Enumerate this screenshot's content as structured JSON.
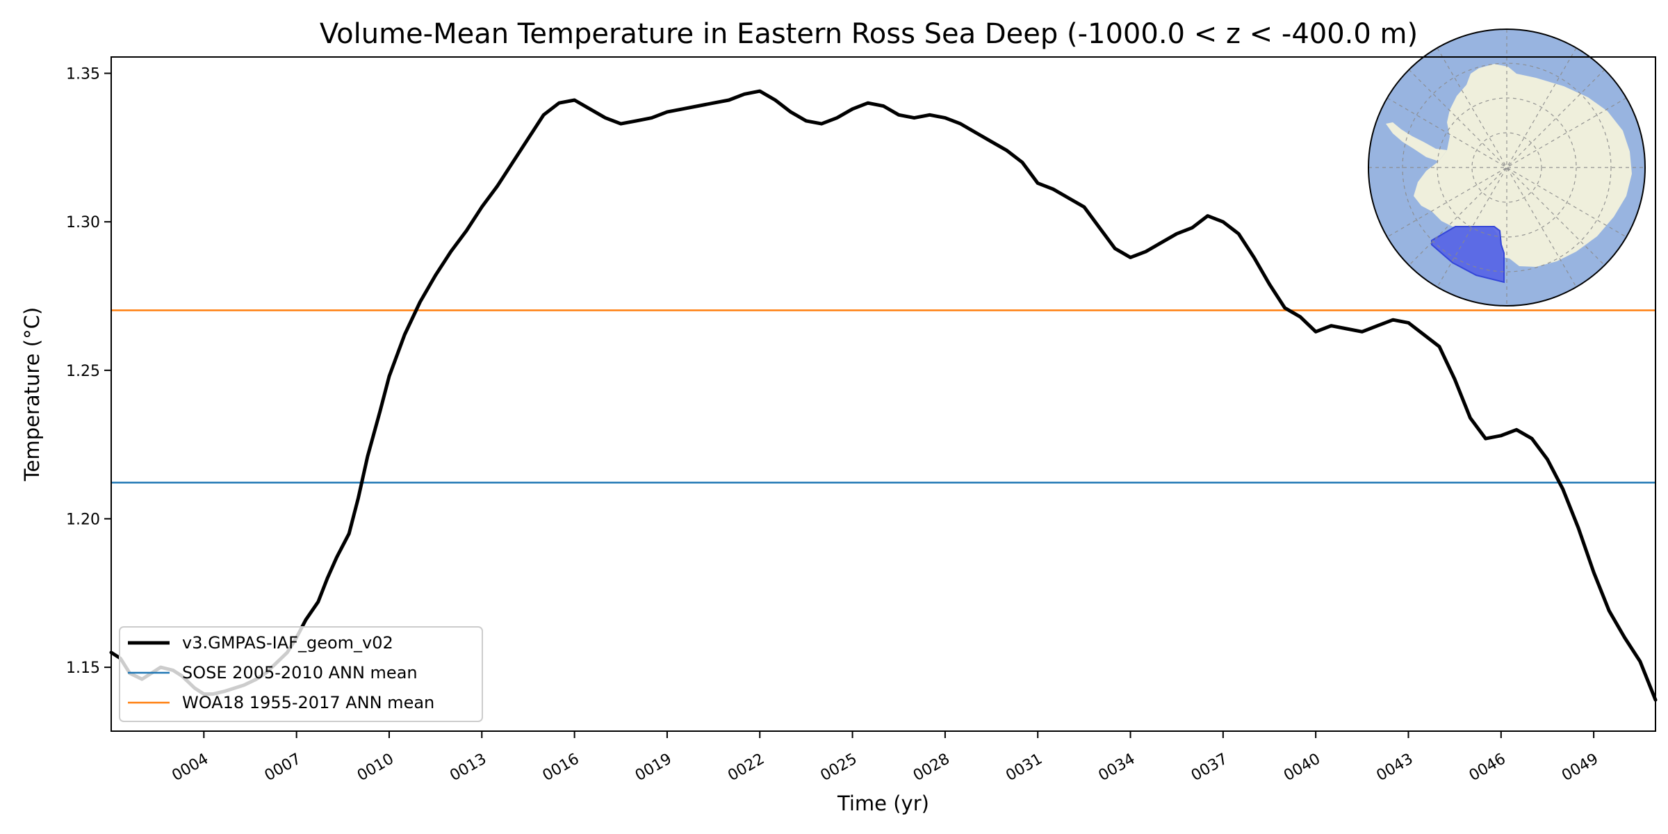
{
  "chart_data": {
    "type": "line",
    "title": "Volume-Mean Temperature in Eastern Ross Sea Deep (-1000.0 < z < -400.0 m)",
    "xlabel": "Time (yr)",
    "ylabel": "Temperature (°C)",
    "xlim": [
      1.0,
      51.0
    ],
    "ylim": [
      1.1285,
      1.3555
    ],
    "x_ticks": [
      4,
      7,
      10,
      13,
      16,
      19,
      22,
      25,
      28,
      31,
      34,
      37,
      40,
      43,
      46,
      49
    ],
    "x_tick_labels": [
      "0004",
      "0007",
      "0010",
      "0013",
      "0016",
      "0019",
      "0022",
      "0025",
      "0028",
      "0031",
      "0034",
      "0037",
      "0040",
      "0043",
      "0046",
      "0049"
    ],
    "y_ticks": [
      1.15,
      1.2,
      1.25,
      1.3,
      1.35
    ],
    "y_tick_labels": [
      "1.15",
      "1.20",
      "1.25",
      "1.30",
      "1.35"
    ],
    "series": [
      {
        "name": "v3.GMPAS-IAF_geom_v02",
        "color": "#000000",
        "x": [
          1.0,
          1.3,
          1.6,
          2.0,
          2.3,
          2.6,
          3.0,
          3.3,
          3.7,
          4.0,
          4.3,
          4.7,
          5.0,
          5.3,
          5.7,
          6.0,
          6.3,
          6.7,
          7.0,
          7.3,
          7.7,
          8.0,
          8.3,
          8.7,
          9.0,
          9.3,
          9.7,
          10.0,
          10.5,
          11.0,
          11.5,
          12.0,
          12.5,
          13.0,
          13.5,
          14.0,
          14.5,
          15.0,
          15.5,
          16.0,
          16.5,
          17.0,
          17.5,
          18.0,
          18.5,
          19.0,
          19.5,
          20.0,
          20.5,
          21.0,
          21.5,
          22.0,
          22.5,
          23.0,
          23.5,
          24.0,
          24.5,
          25.0,
          25.5,
          26.0,
          26.5,
          27.0,
          27.5,
          28.0,
          28.5,
          29.0,
          29.5,
          30.0,
          30.5,
          31.0,
          31.5,
          32.0,
          32.5,
          33.0,
          33.5,
          34.0,
          34.5,
          35.0,
          35.5,
          36.0,
          36.5,
          37.0,
          37.5,
          38.0,
          38.5,
          39.0,
          39.5,
          40.0,
          40.5,
          41.0,
          41.5,
          42.0,
          42.5,
          43.0,
          43.5,
          44.0,
          44.5,
          45.0,
          45.5,
          46.0,
          46.5,
          47.0,
          47.5,
          48.0,
          48.5,
          49.0,
          49.5,
          50.0,
          50.5,
          51.0
        ],
        "values": [
          1.155,
          1.153,
          1.148,
          1.146,
          1.148,
          1.15,
          1.149,
          1.147,
          1.143,
          1.141,
          1.141,
          1.142,
          1.143,
          1.144,
          1.146,
          1.148,
          1.151,
          1.155,
          1.16,
          1.166,
          1.172,
          1.18,
          1.187,
          1.195,
          1.207,
          1.221,
          1.236,
          1.248,
          1.262,
          1.273,
          1.282,
          1.29,
          1.297,
          1.305,
          1.312,
          1.32,
          1.328,
          1.336,
          1.34,
          1.341,
          1.338,
          1.335,
          1.333,
          1.334,
          1.335,
          1.337,
          1.338,
          1.339,
          1.34,
          1.341,
          1.343,
          1.344,
          1.341,
          1.337,
          1.334,
          1.333,
          1.335,
          1.338,
          1.34,
          1.339,
          1.336,
          1.335,
          1.336,
          1.335,
          1.333,
          1.33,
          1.327,
          1.324,
          1.32,
          1.313,
          1.311,
          1.308,
          1.305,
          1.298,
          1.291,
          1.288,
          1.29,
          1.293,
          1.296,
          1.298,
          1.302,
          1.3,
          1.296,
          1.288,
          1.279,
          1.271,
          1.268,
          1.263,
          1.265,
          1.264,
          1.263,
          1.265,
          1.267,
          1.266,
          1.262,
          1.258,
          1.247,
          1.234,
          1.227,
          1.228,
          1.23,
          1.227,
          1.22,
          1.21,
          1.197,
          1.182,
          1.169,
          1.16,
          1.152,
          1.139
        ]
      },
      {
        "name": "SOSE 2005-2010 ANN mean",
        "color": "#1f77b4",
        "type": "hline",
        "value": 1.2122
      },
      {
        "name": "WOA18 1955-2017 ANN mean",
        "color": "#ff7f0e",
        "type": "hline",
        "value": 1.2702
      }
    ],
    "legend_position": "lower-left",
    "inset_map": {
      "description": "south-polar-stereographic-map",
      "ocean_color": "#98b4e0",
      "land_color": "#efefdc",
      "region_color": "#5563e6"
    }
  }
}
